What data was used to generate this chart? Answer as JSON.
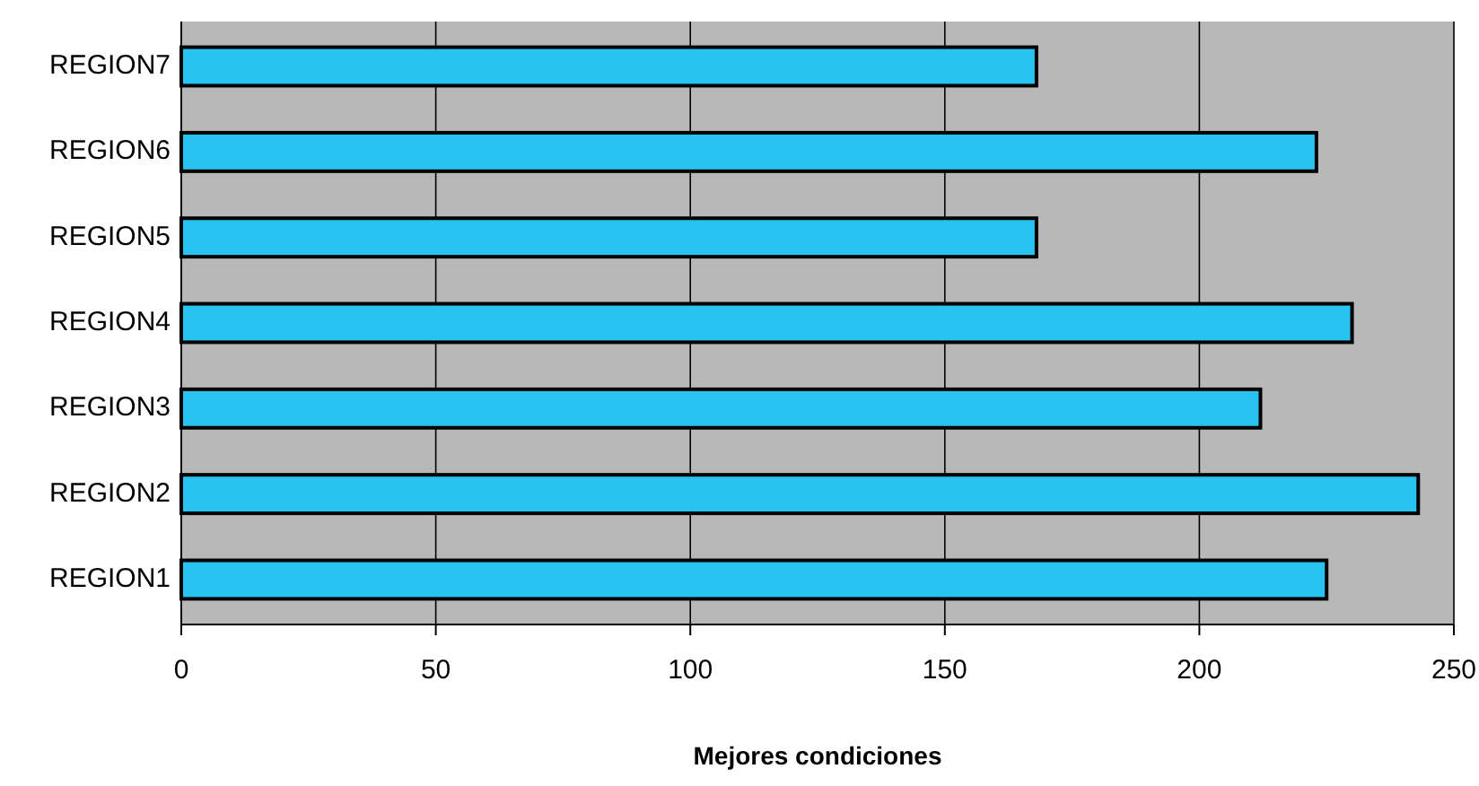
{
  "chart_data": {
    "type": "bar",
    "orientation": "horizontal",
    "xlabel": "Mejores condiciones",
    "categories": [
      "REGION7",
      "REGION6",
      "REGION5",
      "REGION4",
      "REGION3",
      "REGION2",
      "REGION1"
    ],
    "values": [
      168,
      223,
      168,
      230,
      212,
      243,
      225
    ],
    "color": "#29c3f1",
    "xlim": [
      0,
      250
    ],
    "xticks": [
      0,
      50,
      100,
      150,
      200,
      250
    ],
    "grid": "x"
  }
}
